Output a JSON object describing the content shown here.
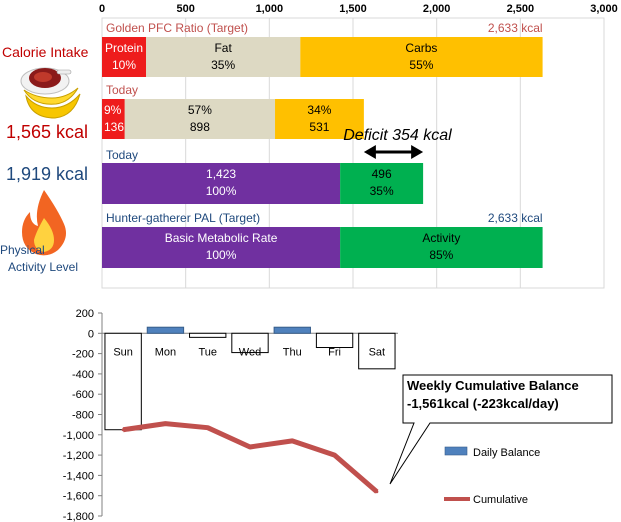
{
  "colors": {
    "protein": "#ee1c1c",
    "fat": "#ddd9c3",
    "carbs": "#ffc000",
    "bmr": "#7030a0",
    "activity": "#00b050",
    "red_label": "#c0504d",
    "blue_label": "#1f497d",
    "daily_fill_pos": "#4f81bd",
    "cumulative": "#c0504d"
  },
  "icons": [
    "meat-plate-icon",
    "banana-icon",
    "flame-icon"
  ],
  "left_labels": {
    "calorie_intake": "Calorie Intake",
    "intake_value": "1,565 kcal",
    "expenditure_value": "1,919 kcal",
    "physical": "Physical",
    "activity_level": "Activity Level"
  },
  "chart_data": [
    {
      "type": "bar",
      "orientation": "horizontal",
      "stacked": true,
      "xlim": [
        0,
        3000
      ],
      "x_ticks": [
        "0",
        "500",
        "1,000",
        "1,500",
        "2,000",
        "2,500",
        "3,000"
      ],
      "grid": true,
      "rows": [
        {
          "title": "Golden PFC Ratio (Target)",
          "title_color": "red",
          "total_label": "2,633 kcal",
          "segments": [
            {
              "name": "Protein",
              "value": 263,
              "label1": "Protein",
              "label2": "10%"
            },
            {
              "name": "Fat",
              "value": 922,
              "label1": "Fat",
              "label2": "35%"
            },
            {
              "name": "Carbs",
              "value": 1448,
              "label1": "Carbs",
              "label2": "55%"
            }
          ]
        },
        {
          "title": "Today",
          "title_color": "red",
          "total_label": "",
          "segments": [
            {
              "name": "Protein",
              "value": 136,
              "label1": "9%",
              "label2": "136"
            },
            {
              "name": "Fat",
              "value": 898,
              "label1": "57%",
              "label2": "898"
            },
            {
              "name": "Carbs",
              "value": 531,
              "label1": "34%",
              "label2": "531"
            }
          ]
        },
        {
          "title": "Today",
          "title_color": "blue",
          "total_label": "",
          "segments": [
            {
              "name": "BMR",
              "value": 1423,
              "label1": "1,423",
              "label2": "100%"
            },
            {
              "name": "Activity",
              "value": 496,
              "label1": "496",
              "label2": "35%"
            }
          ]
        },
        {
          "title": "Hunter-gatherer  PAL (Target)",
          "title_color": "blue",
          "total_label": "2,633 kcal",
          "segments": [
            {
              "name": "BMR",
              "value": 1423,
              "label1": "Basic Metabolic Rate",
              "label2": "100%"
            },
            {
              "name": "Activity",
              "value": 1210,
              "label1": "Activity",
              "label2": "85%"
            }
          ]
        }
      ],
      "deficit": {
        "label": "Deficit 354 kcal",
        "from": 1565,
        "to": 1919
      }
    },
    {
      "type": "bar",
      "categories": [
        "Sun",
        "Mon",
        "Tue",
        "Wed",
        "Thu",
        "Fri",
        "Sat"
      ],
      "ylim": [
        -1800,
        200
      ],
      "y_ticks": [
        "200",
        "0",
        "-200",
        "-400",
        "-600",
        "-800",
        "-1,000",
        "-1,200",
        "-1,400",
        "-1,600",
        "-1,800"
      ],
      "series": [
        {
          "name": "Daily Balance",
          "kind": "bar",
          "values": [
            -950,
            60,
            -40,
            -190,
            60,
            -140,
            -350
          ]
        },
        {
          "name": "Cumulative",
          "kind": "line",
          "values": [
            -950,
            -890,
            -930,
            -1120,
            -1060,
            -1200,
            -1561
          ]
        }
      ],
      "callout": {
        "line1": "Weekly Cumulative Balance",
        "line2": "-1,561kcal (-223kcal/day)"
      }
    }
  ]
}
